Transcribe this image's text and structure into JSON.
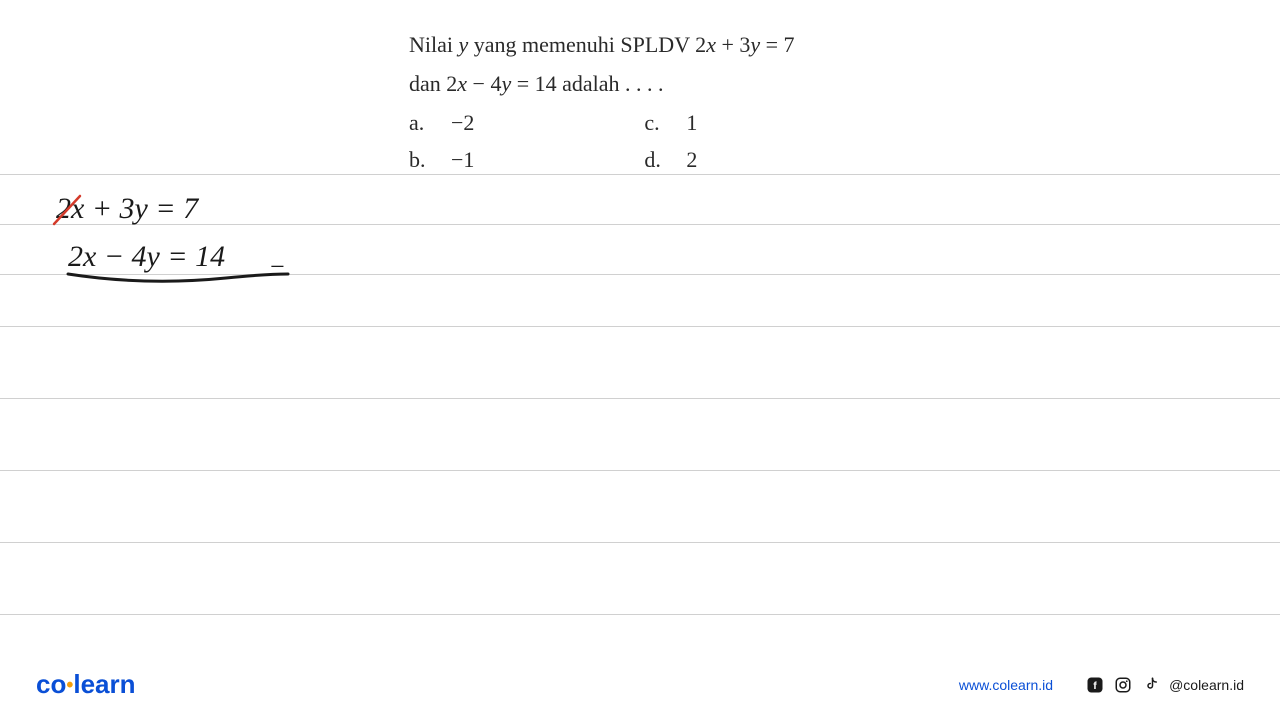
{
  "question": {
    "line1_prefix": "Nilai ",
    "line1_var": "y",
    "line1_mid": " yang memenuhi SPLDV 2",
    "line1_x": "x",
    "line1_plus": " + 3",
    "line1_y2": "y",
    "line1_eq": " = 7",
    "line2_prefix": "dan  2",
    "line2_x": "x",
    "line2_mid": " − 4",
    "line2_y": "y",
    "line2_end": " = 14  adalah  . . . .",
    "options": {
      "a_label": "a.",
      "a_value": "−2",
      "b_label": "b.",
      "b_value": "−1",
      "c_label": "c.",
      "c_value": "1",
      "d_label": "d.",
      "d_value": "2"
    }
  },
  "handwriting": {
    "line1": "2x + 3y = 7",
    "line2": "2x − 4y = 14",
    "minus": "−"
  },
  "lines": {
    "positions": [
      174,
      224,
      274,
      326,
      398,
      470,
      542,
      614
    ],
    "color": "#d0d0d0"
  },
  "strike": {
    "color": "#d43a2a",
    "stroke_width": 2.5
  },
  "underline": {
    "color": "#1a1a1a",
    "stroke_width": 3
  },
  "footer": {
    "logo_co": "co",
    "logo_learn": "learn",
    "website": "www.colearn.id",
    "handle": "@colearn.id",
    "brand_color": "#0a4fd6",
    "dot_color": "#f59e0b"
  }
}
